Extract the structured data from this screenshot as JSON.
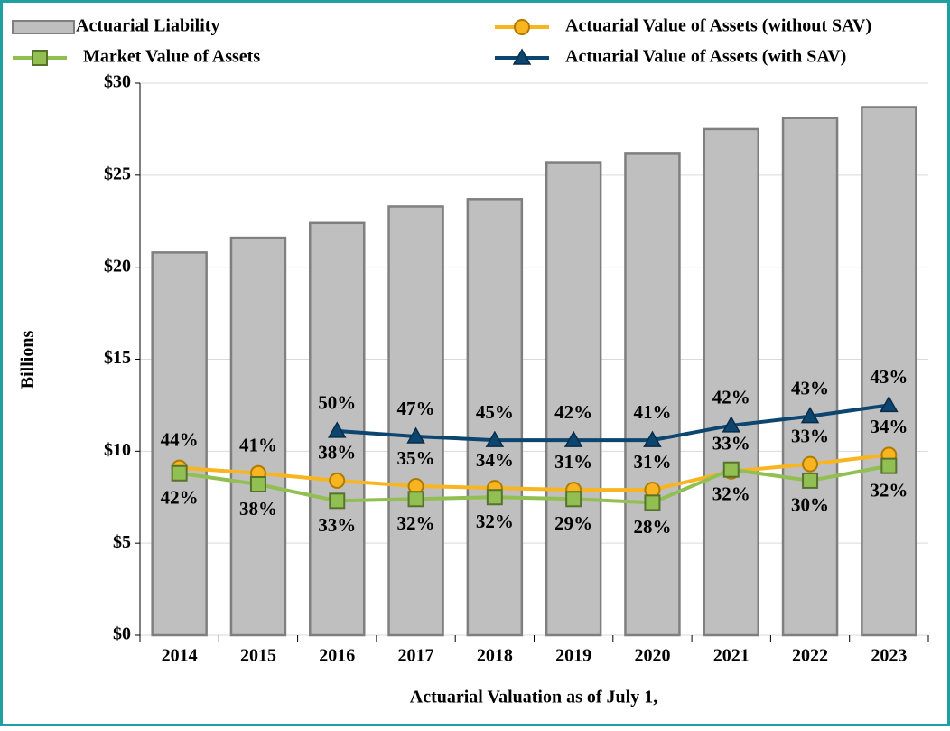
{
  "chart_data": {
    "type": "bar",
    "categories": [
      "2014",
      "2015",
      "2016",
      "2017",
      "2018",
      "2019",
      "2020",
      "2021",
      "2022",
      "2023"
    ],
    "series": [
      {
        "name": "Actuarial Liability",
        "type": "bar",
        "color": "#bfbfbf",
        "edge_color": "#7f7f7f",
        "values": [
          20.8,
          21.6,
          22.4,
          23.3,
          23.7,
          25.7,
          26.2,
          27.5,
          28.1,
          28.7
        ]
      },
      {
        "name": "Actuarial Value of Assets (without SAV)",
        "type": "line",
        "marker": "circle",
        "color": "#f9b51f",
        "edge_color": "#b07a00",
        "values": [
          9.1,
          8.8,
          8.4,
          8.1,
          8.0,
          7.9,
          7.9,
          8.9,
          9.3,
          9.8
        ],
        "point_labels": [
          "44%",
          "41%",
          "38%",
          "35%",
          "34%",
          "31%",
          "31%",
          "33%",
          "33%",
          "34%"
        ],
        "label_side": "above"
      },
      {
        "name": "Market Value of Assets",
        "type": "line",
        "marker": "square",
        "color": "#92bf52",
        "edge_color": "#56722e",
        "values": [
          8.8,
          8.2,
          7.3,
          7.4,
          7.5,
          7.4,
          7.2,
          9.0,
          8.4,
          9.2
        ],
        "point_labels": [
          "42%",
          "38%",
          "33%",
          "32%",
          "32%",
          "29%",
          "28%",
          "32%",
          "30%",
          "32%"
        ],
        "label_side": "below"
      },
      {
        "name": "Actuarial Value of Assets (with SAV)",
        "type": "line",
        "marker": "triangle",
        "color": "#0c4670",
        "edge_color": "#082c48",
        "values": [
          null,
          null,
          11.1,
          10.8,
          10.6,
          10.6,
          10.6,
          11.4,
          11.9,
          12.5
        ],
        "point_labels": [
          null,
          null,
          "50%",
          "47%",
          "45%",
          "42%",
          "41%",
          "42%",
          "43%",
          "43%"
        ],
        "label_side": "above"
      }
    ],
    "ylabel": "Billions",
    "xlabel": "Actuarial Valuation as of July 1,",
    "ylim": [
      0,
      30
    ],
    "yticks": [
      {
        "value": 0,
        "label": "$0"
      },
      {
        "value": 5,
        "label": "$5"
      },
      {
        "value": 10,
        "label": "$10"
      },
      {
        "value": 15,
        "label": "$15"
      },
      {
        "value": 20,
        "label": "$20"
      },
      {
        "value": 25,
        "label": "$25"
      },
      {
        "value": 30,
        "label": "$30"
      }
    ],
    "grid": true,
    "legend": "top"
  }
}
